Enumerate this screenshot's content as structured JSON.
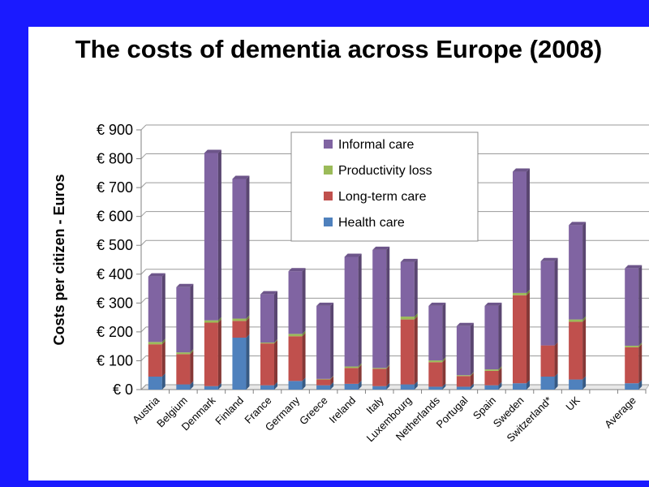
{
  "page": {
    "title": "The costs of dementia across Europe (2008)"
  },
  "colors": {
    "background": "#1a1aff",
    "health_care": "#4f81bd",
    "long_term_care": "#c0504d",
    "productivity_loss": "#9bbb59",
    "informal_care": "#8064a2"
  },
  "chart_data": {
    "type": "bar",
    "stacked": true,
    "title": "The costs of dementia across Europe (2008)",
    "xlabel": "",
    "ylabel": "Costs per citizen - Euros",
    "ylim": [
      0,
      900
    ],
    "yticks": [
      "€ 0",
      "€ 100",
      "€ 200",
      "€ 300",
      "€ 400",
      "€ 500",
      "€ 600",
      "€ 700",
      "€ 800",
      "€ 900"
    ],
    "categories": [
      "Austria",
      "Belgium",
      "Denmark",
      "Finland",
      "France",
      "Germany",
      "Greece",
      "Ireland",
      "Italy",
      "Luxembourg",
      "Netherlands",
      "Portugal",
      "Spain",
      "Sweden",
      "Switzerland*",
      "UK",
      "",
      "Average"
    ],
    "series": [
      {
        "name": "Health care",
        "values": [
          45,
          18,
          12,
          180,
          15,
          30,
          15,
          20,
          12,
          18,
          10,
          10,
          15,
          22,
          45,
          35,
          null,
          22
        ]
      },
      {
        "name": "Long-term care",
        "values": [
          112,
          105,
          220,
          58,
          145,
          155,
          20,
          55,
          60,
          225,
          85,
          37,
          50,
          305,
          108,
          200,
          null,
          125
        ]
      },
      {
        "name": "Productivity loss",
        "values": [
          8,
          6,
          8,
          8,
          3,
          8,
          2,
          5,
          3,
          10,
          6,
          3,
          5,
          8,
          0,
          8,
          null,
          5
        ]
      },
      {
        "name": "Informal care",
        "values": [
          227,
          226,
          580,
          484,
          167,
          217,
          253,
          380,
          409,
          189,
          189,
          170,
          220,
          420,
          292,
          327,
          null,
          268
        ]
      }
    ],
    "grid": true,
    "legend": {
      "position": "top-center",
      "order": [
        "Informal care",
        "Productivity loss",
        "Long-term care",
        "Health care"
      ]
    }
  }
}
